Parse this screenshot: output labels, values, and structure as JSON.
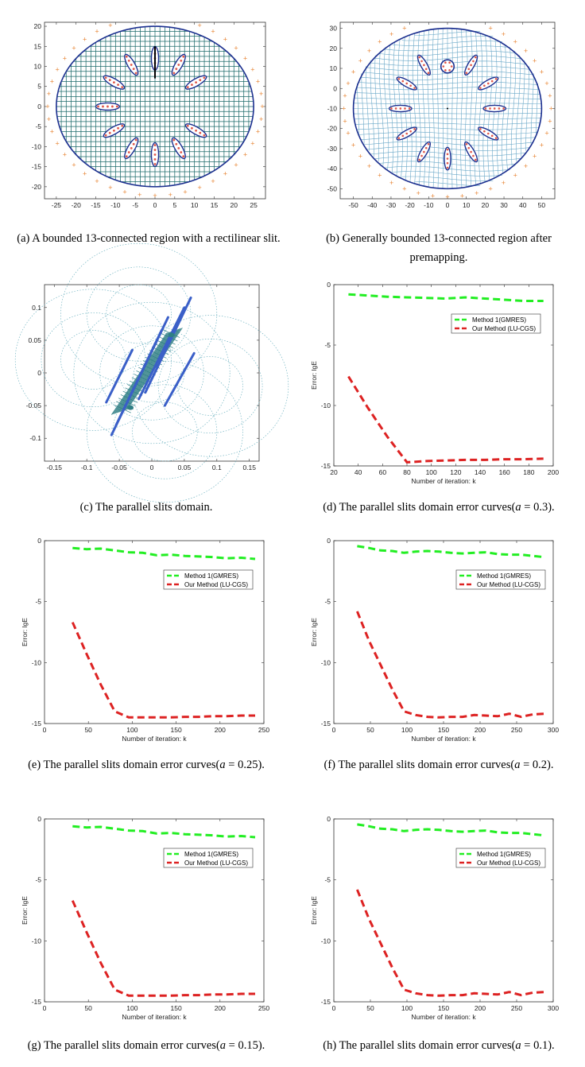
{
  "colors": {
    "grid_a": "#1e6b6b",
    "boundary": "#1b2f8f",
    "crosses": "#e8883a",
    "red_dots": "#e0584a",
    "green": "#22ee22",
    "red": "#dd2222",
    "panel_c": "#2f7f85",
    "slit": "#3a5fc8"
  },
  "captions": {
    "a": {
      "label": "(a)",
      "text": "A bounded 13-connected region with a rectilinear slit."
    },
    "b": {
      "label": "(b)",
      "text": "Generally bounded 13-connected region after premapping."
    },
    "c": {
      "label": "(c)",
      "text": "The parallel slits domain."
    },
    "d": {
      "prefix": "(d) The parallel slits domain error curves(",
      "var": "a",
      "value": " = 0.3)."
    },
    "e": {
      "prefix": "(e) The parallel slits domain error curves(",
      "var": "a",
      "value": " = 0.25)."
    },
    "f": {
      "prefix": "(f) The parallel slits domain error curves(",
      "var": "a",
      "value": " = 0.2)."
    },
    "g": {
      "prefix": "(g) The parallel slits domain error curves(",
      "var": "a",
      "value": " = 0.15)."
    },
    "h": {
      "prefix": "(h) The parallel slits domain error curves(",
      "var": "a",
      "value": " = 0.1)."
    }
  },
  "chart_data": [
    {
      "id": "a",
      "type": "scatter",
      "title": "A bounded 13-connected region with a rectilinear slit",
      "xlim": [
        -28,
        28
      ],
      "ylim": [
        -23,
        21
      ],
      "xticks": [
        -25,
        -20,
        -15,
        -10,
        -5,
        0,
        5,
        10,
        15,
        20,
        25
      ],
      "yticks": [
        -20,
        -15,
        -10,
        -5,
        0,
        5,
        10,
        15,
        20
      ],
      "outer_boundary": {
        "shape": "ellipse",
        "rx": 25,
        "ry": 20
      },
      "slit": {
        "x": 0,
        "y": [
          7,
          15
        ]
      },
      "holes": {
        "count": 12,
        "ring_radius": 12,
        "semi_major": 3,
        "semi_minor": 0.9,
        "orientation": "radial"
      }
    },
    {
      "id": "b",
      "type": "scatter",
      "title": "Generally bounded 13-connected region after premapping",
      "xlim": [
        -57,
        57
      ],
      "ylim": [
        -55,
        33
      ],
      "xticks": [
        -50,
        -40,
        -30,
        -20,
        -10,
        0,
        10,
        20,
        30,
        40,
        50
      ],
      "yticks": [
        -50,
        -40,
        -30,
        -20,
        -10,
        0,
        10,
        20,
        30
      ],
      "outer_boundary": {
        "shape": "ellipse",
        "cx": 0,
        "cy": -10,
        "rx": 50,
        "ry": 40
      },
      "center_hole": {
        "x": 0,
        "y": 11,
        "radius": 3.5
      },
      "holes": {
        "count": 12,
        "ring_radius": 25,
        "semi_major": 6,
        "semi_minor": 1.6,
        "orientation": "radial"
      }
    },
    {
      "id": "c",
      "type": "scatter",
      "title": "The parallel slits domain",
      "xlim": [
        -0.165,
        0.165
      ],
      "ylim": [
        -0.135,
        0.135
      ],
      "xticks": [
        -0.15,
        -0.1,
        -0.05,
        0,
        0.05,
        0.1,
        0.15
      ],
      "yticks": [
        -0.1,
        -0.05,
        0,
        0.05,
        0.1
      ],
      "slits": [
        [
          [
            -0.062,
            -0.095
          ],
          [
            0.008,
            0.05
          ]
        ],
        [
          [
            -0.055,
            -0.08
          ],
          [
            0.015,
            0.065
          ]
        ],
        [
          [
            -0.045,
            -0.06
          ],
          [
            0.025,
            0.085
          ]
        ],
        [
          [
            -0.02,
            -0.04
          ],
          [
            0.05,
            0.1
          ]
        ],
        [
          [
            -0.01,
            -0.03
          ],
          [
            0.06,
            0.115
          ]
        ],
        [
          [
            -0.07,
            -0.045
          ],
          [
            -0.03,
            0.035
          ]
        ],
        [
          [
            0.02,
            -0.05
          ],
          [
            0.065,
            0.03
          ]
        ]
      ]
    },
    {
      "id": "d",
      "type": "line",
      "xlabel": "Number of iteration: k",
      "ylabel": "Error: lgE",
      "xlim": [
        20,
        200
      ],
      "ylim": [
        -15,
        0
      ],
      "xticks": [
        20,
        40,
        60,
        80,
        100,
        120,
        140,
        160,
        180,
        200
      ],
      "yticks": [
        0,
        -5,
        -10,
        -15
      ],
      "series": [
        {
          "name": "Method 1(GMRES)",
          "color": "#22ee22",
          "x": [
            32,
            48,
            64,
            80,
            96,
            112,
            128,
            144,
            160,
            176,
            192
          ],
          "y": [
            -0.8,
            -0.9,
            -1.0,
            -1.05,
            -1.1,
            -1.15,
            -1.05,
            -1.15,
            -1.25,
            -1.35,
            -1.35
          ]
        },
        {
          "name": "Our Method (LU-CGS)",
          "color": "#dd2222",
          "x": [
            32,
            48,
            64,
            80,
            96,
            112,
            128,
            144,
            160,
            176,
            192
          ],
          "y": [
            -7.6,
            -10.2,
            -12.6,
            -14.7,
            -14.6,
            -14.55,
            -14.5,
            -14.5,
            -14.45,
            -14.45,
            -14.4
          ]
        }
      ]
    },
    {
      "id": "e",
      "type": "line",
      "xlabel": "Number of iteration: k",
      "ylabel": "Error: lgE",
      "xlim": [
        0,
        250
      ],
      "ylim": [
        -15,
        0
      ],
      "xticks": [
        0,
        50,
        100,
        150,
        200,
        250
      ],
      "yticks": [
        0,
        -5,
        -10,
        -15
      ],
      "series": [
        {
          "name": "Method 1(GMRES)",
          "color": "#22ee22",
          "x": [
            32,
            48,
            64,
            80,
            96,
            112,
            128,
            144,
            160,
            176,
            192,
            208,
            224,
            240
          ],
          "y": [
            -0.6,
            -0.7,
            -0.65,
            -0.8,
            -0.95,
            -1.0,
            -1.2,
            -1.15,
            -1.25,
            -1.3,
            -1.35,
            -1.45,
            -1.4,
            -1.5
          ]
        },
        {
          "name": "Our Method (LU-CGS)",
          "color": "#dd2222",
          "x": [
            32,
            48,
            64,
            80,
            96,
            112,
            128,
            144,
            160,
            176,
            192,
            208,
            224,
            240
          ],
          "y": [
            -6.7,
            -9.3,
            -11.8,
            -14.0,
            -14.5,
            -14.5,
            -14.5,
            -14.5,
            -14.45,
            -14.45,
            -14.4,
            -14.4,
            -14.35,
            -14.35
          ]
        }
      ]
    },
    {
      "id": "f",
      "type": "line",
      "xlabel": "Number of iteration: k",
      "ylabel": "Error: lgE",
      "xlim": [
        0,
        300
      ],
      "ylim": [
        -15,
        0
      ],
      "xticks": [
        0,
        50,
        100,
        150,
        200,
        250,
        300
      ],
      "yticks": [
        0,
        -5,
        -10,
        -15
      ],
      "series": [
        {
          "name": "Method 1(GMRES)",
          "color": "#22ee22",
          "x": [
            32,
            48,
            64,
            80,
            96,
            112,
            128,
            144,
            160,
            176,
            192,
            208,
            224,
            240,
            256,
            272,
            288
          ],
          "y": [
            -0.45,
            -0.6,
            -0.8,
            -0.85,
            -1.0,
            -0.9,
            -0.85,
            -0.9,
            -1.0,
            -1.05,
            -1.0,
            -0.95,
            -1.1,
            -1.15,
            -1.15,
            -1.25,
            -1.35
          ]
        },
        {
          "name": "Our Method (LU-CGS)",
          "color": "#dd2222",
          "x": [
            32,
            48,
            64,
            80,
            96,
            112,
            128,
            144,
            160,
            176,
            192,
            208,
            224,
            240,
            256,
            272,
            288
          ],
          "y": [
            -5.8,
            -8.2,
            -10.2,
            -12.2,
            -14.0,
            -14.3,
            -14.45,
            -14.5,
            -14.45,
            -14.45,
            -14.3,
            -14.35,
            -14.4,
            -14.2,
            -14.45,
            -14.25,
            -14.2
          ]
        }
      ]
    },
    {
      "id": "g",
      "type": "line",
      "xlabel": "Number of iteration: k",
      "ylabel": "Error: lgE",
      "xlim": [
        0,
        250
      ],
      "ylim": [
        -15,
        0
      ],
      "xticks": [
        0,
        50,
        100,
        150,
        200,
        250
      ],
      "yticks": [
        0,
        -5,
        -10,
        -15
      ],
      "series": [
        {
          "name": "Method 1(GMRES)",
          "color": "#22ee22",
          "x": [
            32,
            48,
            64,
            80,
            96,
            112,
            128,
            144,
            160,
            176,
            192,
            208,
            224,
            240
          ],
          "y": [
            -0.6,
            -0.7,
            -0.65,
            -0.8,
            -0.95,
            -1.0,
            -1.2,
            -1.15,
            -1.25,
            -1.3,
            -1.35,
            -1.45,
            -1.4,
            -1.5
          ]
        },
        {
          "name": "Our Method (LU-CGS)",
          "color": "#dd2222",
          "x": [
            32,
            48,
            64,
            80,
            96,
            112,
            128,
            144,
            160,
            176,
            192,
            208,
            224,
            240
          ],
          "y": [
            -6.7,
            -9.3,
            -11.8,
            -14.0,
            -14.5,
            -14.5,
            -14.5,
            -14.5,
            -14.45,
            -14.45,
            -14.4,
            -14.4,
            -14.35,
            -14.35
          ]
        }
      ]
    },
    {
      "id": "h",
      "type": "line",
      "xlabel": "Number of iteration: k",
      "ylabel": "Error: lgE",
      "xlim": [
        0,
        300
      ],
      "ylim": [
        -15,
        0
      ],
      "xticks": [
        0,
        50,
        100,
        150,
        200,
        250,
        300
      ],
      "yticks": [
        0,
        -5,
        -10,
        -15
      ],
      "series": [
        {
          "name": "Method 1(GMRES)",
          "color": "#22ee22",
          "x": [
            32,
            48,
            64,
            80,
            96,
            112,
            128,
            144,
            160,
            176,
            192,
            208,
            224,
            240,
            256,
            272,
            288
          ],
          "y": [
            -0.45,
            -0.6,
            -0.8,
            -0.85,
            -1.0,
            -0.9,
            -0.85,
            -0.9,
            -1.0,
            -1.05,
            -1.0,
            -0.95,
            -1.1,
            -1.15,
            -1.15,
            -1.25,
            -1.35
          ]
        },
        {
          "name": "Our Method (LU-CGS)",
          "color": "#dd2222",
          "x": [
            32,
            48,
            64,
            80,
            96,
            112,
            128,
            144,
            160,
            176,
            192,
            208,
            224,
            240,
            256,
            272,
            288
          ],
          "y": [
            -5.8,
            -8.2,
            -10.2,
            -12.2,
            -14.0,
            -14.3,
            -14.45,
            -14.5,
            -14.45,
            -14.45,
            -14.3,
            -14.35,
            -14.4,
            -14.2,
            -14.45,
            -14.25,
            -14.2
          ]
        }
      ]
    }
  ]
}
